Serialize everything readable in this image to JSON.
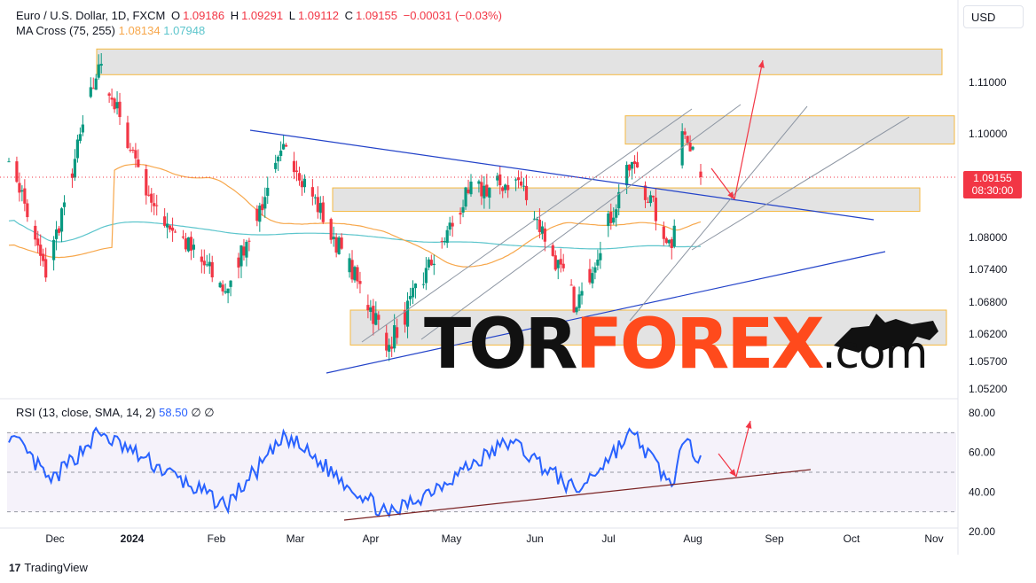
{
  "header": {
    "symbol_title": "Euro / U.S. Dollar, 1D, FXCM",
    "open_label": "O",
    "open_value": "1.09186",
    "high_label": "H",
    "high_value": "1.09291",
    "low_label": "L",
    "low_value": "1.09112",
    "close_label": "C",
    "close_value": "1.09155",
    "change_value": "−0.00031 (−0.03%)"
  },
  "ma_legend": {
    "name": "MA Cross (75, 255)",
    "fast_value": "1.08134",
    "slow_value": "1.07948"
  },
  "rsi_legend": {
    "name": "RSI (13, close, SMA, 14, 2)",
    "value": "58.50",
    "extra1": "∅",
    "extra2": "∅"
  },
  "currency_button": "USD",
  "last_price": {
    "price": "1.09155",
    "countdown": "08:30:00"
  },
  "footer": {
    "brand": "TradingView",
    "brand_mark": "17"
  },
  "watermark": {
    "part1": "TOR",
    "part2": "FOREX",
    "part3": ".com"
  },
  "colors": {
    "up": "#089981",
    "down": "#f23645",
    "ma_fast": "#f7a74b",
    "ma_slow": "#5cc5cc",
    "rsi": "#2962ff",
    "zone_fill": "#d9d9d9",
    "zone_border": "#f5b940",
    "trend_blue": "#2343c9",
    "trend_brown": "#7b2424"
  },
  "chart_data": [
    {
      "type": "candlestick",
      "title": "Euro / U.S. Dollar, 1D, FXCM",
      "x_ticks": [
        "Dec",
        "2024",
        "Feb",
        "Mar",
        "Apr",
        "May",
        "Jun",
        "Jul",
        "Aug",
        "Sep",
        "Oct",
        "Nov"
      ],
      "y_ticks": [
        "1.11000",
        "1.10000",
        "1.09155",
        "1.08000",
        "1.07400",
        "1.06800",
        "1.06200",
        "1.05700",
        "1.05200"
      ],
      "ylim": [
        1.0505,
        1.1165
      ],
      "key_path": [
        {
          "date": "Nov 25",
          "price": 1.095
        },
        {
          "date": "Dec 8",
          "price": 1.0725
        },
        {
          "date": "Dec 28",
          "price": 1.1135
        },
        {
          "date": "Jan 18",
          "price": 1.086
        },
        {
          "date": "Feb 14",
          "price": 1.07
        },
        {
          "date": "Mar 8",
          "price": 1.0975
        },
        {
          "date": "Apr 16",
          "price": 1.06
        },
        {
          "date": "May 16",
          "price": 1.0885
        },
        {
          "date": "Jun 4",
          "price": 1.091
        },
        {
          "date": "Jun 26",
          "price": 1.067
        },
        {
          "date": "Jul 17",
          "price": 1.0945
        },
        {
          "date": "Aug 1",
          "price": 1.078
        },
        {
          "date": "Aug 5",
          "price": 1.1005
        },
        {
          "date": "Aug 12",
          "price": 1.09155
        }
      ],
      "zones": [
        {
          "from": 1.1115,
          "to": 1.1165
        },
        {
          "from": 1.098,
          "to": 1.1035
        },
        {
          "from": 1.085,
          "to": 1.0895
        },
        {
          "from": 1.06,
          "to": 1.0665
        }
      ],
      "series": [
        {
          "name": "MA Cross (75, 255) fast",
          "last": 1.08134
        },
        {
          "name": "MA Cross (75, 255) slow",
          "last": 1.07948
        }
      ]
    },
    {
      "type": "line",
      "title": "RSI (13, close, SMA, 14, 2)",
      "y_ticks": [
        "80.00",
        "60.00",
        "40.00",
        "20.00"
      ],
      "ylim": [
        20,
        80
      ],
      "bands": [
        30,
        50,
        70
      ],
      "key_path": [
        {
          "date": "Nov 25",
          "value": 68
        },
        {
          "date": "Dec 10",
          "value": 45
        },
        {
          "date": "Dec 28",
          "value": 70
        },
        {
          "date": "Feb 14",
          "value": 33
        },
        {
          "date": "Mar 8",
          "value": 68
        },
        {
          "date": "Apr 16",
          "value": 28
        },
        {
          "date": "Jun 1",
          "value": 66
        },
        {
          "date": "Jun 26",
          "value": 40
        },
        {
          "date": "Jul 17",
          "value": 70
        },
        {
          "date": "Aug 1",
          "value": 43
        },
        {
          "date": "Aug 5",
          "value": 64
        },
        {
          "date": "Aug 12",
          "value": 58.5
        }
      ]
    }
  ]
}
